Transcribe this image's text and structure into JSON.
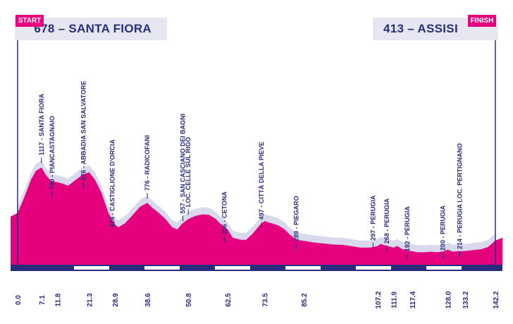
{
  "header": {
    "start_flag": "START",
    "finish_flag": "FINISH",
    "start_label": "678 – SANTA FIORA",
    "finish_label": "413 – ASSISI"
  },
  "colors": {
    "profile_fill": "#e5007e",
    "profile_shadow": "#d9d9ec",
    "axis_band": "#2a2c7c",
    "text": "#2a2c7c",
    "flag": "#e5007e"
  },
  "chart_data": {
    "type": "area",
    "title": "",
    "xlabel": "",
    "ylabel": "",
    "x_unit": "km",
    "xlim": [
      0,
      142.2
    ],
    "ylim": [
      180,
      1200
    ],
    "km_ticks": [
      "0.0",
      "7.1",
      "11.8",
      "21.3",
      "28.9",
      "38.6",
      "50.8",
      "62.5",
      "73.5",
      "85.2",
      "107.2",
      "111.9",
      "117.4",
      "128.0",
      "133.2",
      "142.2"
    ],
    "profile": [
      [
        0,
        678
      ],
      [
        2,
        830
      ],
      [
        4,
        1000
      ],
      [
        5.5,
        1085
      ],
      [
        7.1,
        1117
      ],
      [
        8.5,
        1040
      ],
      [
        10,
        985
      ],
      [
        11.8,
        975
      ],
      [
        13.5,
        960
      ],
      [
        15,
        940
      ],
      [
        17,
        990
      ],
      [
        19.5,
        1050
      ],
      [
        21.3,
        1070
      ],
      [
        23,
        1000
      ],
      [
        25,
        870
      ],
      [
        27,
        680
      ],
      [
        28.9,
        570
      ],
      [
        30,
        540
      ],
      [
        32,
        580
      ],
      [
        34,
        650
      ],
      [
        36.5,
        740
      ],
      [
        38.6,
        776
      ],
      [
        40,
        730
      ],
      [
        42,
        680
      ],
      [
        44,
        620
      ],
      [
        46,
        540
      ],
      [
        47.5,
        520
      ],
      [
        49,
        575
      ],
      [
        50.8,
        620
      ],
      [
        53,
        650
      ],
      [
        55,
        665
      ],
      [
        57,
        660
      ],
      [
        59,
        620
      ],
      [
        60.5,
        570
      ],
      [
        62.5,
        520
      ],
      [
        64,
        440
      ],
      [
        66.5,
        420
      ],
      [
        68,
        420
      ],
      [
        70,
        480
      ],
      [
        72,
        560
      ],
      [
        73.5,
        600
      ],
      [
        75.5,
        580
      ],
      [
        77.5,
        560
      ],
      [
        79.5,
        520
      ],
      [
        81,
        470
      ],
      [
        83,
        420
      ],
      [
        85.2,
        410
      ],
      [
        88,
        395
      ],
      [
        91,
        385
      ],
      [
        94,
        375
      ],
      [
        97,
        370
      ],
      [
        100,
        355
      ],
      [
        102,
        345
      ],
      [
        105,
        345
      ],
      [
        107.2,
        360
      ],
      [
        108,
        380
      ],
      [
        109.5,
        365
      ],
      [
        111.9,
        345
      ],
      [
        113,
        360
      ],
      [
        114.5,
        330
      ],
      [
        117.4,
        310
      ],
      [
        119,
        300
      ],
      [
        121,
        300
      ],
      [
        123,
        305
      ],
      [
        125,
        300
      ],
      [
        127,
        310
      ],
      [
        128,
        325
      ],
      [
        129.5,
        305
      ],
      [
        131,
        310
      ],
      [
        133.2,
        312
      ],
      [
        135.5,
        320
      ],
      [
        138,
        330
      ],
      [
        140,
        350
      ],
      [
        141.2,
        385
      ],
      [
        142.2,
        413
      ]
    ],
    "annotations": [
      {
        "km": 7.1,
        "label": "1117 - SANTA FIORA",
        "elevation": 1117
      },
      {
        "km": 10.3,
        "label": "789 - PIANCASTAGNAIO",
        "elevation": 789
      },
      {
        "km": 19.6,
        "label": "876 - ABBADIA SAN SALVATORE",
        "elevation": 876
      },
      {
        "km": 28.2,
        "label": "424 - CASTIGLIONE D'ORCIA",
        "elevation": 424
      },
      {
        "km": 38.6,
        "label": "776 - RADICOFANI",
        "elevation": 776
      },
      {
        "km": 49.2,
        "label": "557 - SAN CASCIANO DEI BAGNI",
        "elevation": 557
      },
      {
        "km": 50.8,
        "label": "LOC. CELLE SUL RIGO",
        "elevation": 620
      },
      {
        "km": 61.6,
        "label": "356 - CETONA",
        "elevation": 356
      },
      {
        "km": 72.6,
        "label": "497 - CITTÀ DELLA PIEVE",
        "elevation": 497
      },
      {
        "km": 82.9,
        "label": "289 - PIEGARO",
        "elevation": 289
      },
      {
        "km": 105.8,
        "label": "297 - PERUGIA",
        "elevation": 297
      },
      {
        "km": 109.9,
        "label": "268 - PERUGIA",
        "elevation": 268
      },
      {
        "km": 116.0,
        "label": "192 - PERUGIA",
        "elevation": 192
      },
      {
        "km": 126.6,
        "label": "200 - PERUGIA",
        "elevation": 200
      },
      {
        "km": 131.6,
        "label": "214 - PERUGIA LOC. PERTIGNANO",
        "elevation": 214
      }
    ]
  }
}
